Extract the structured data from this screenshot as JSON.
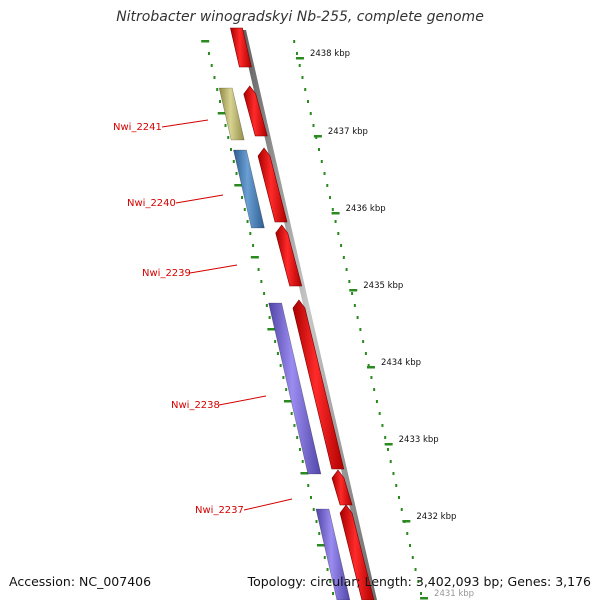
{
  "title": "Nitrobacter winogradskyi Nb-255, complete genome",
  "footer": {
    "accession": "Accession: NC_007406",
    "summary": "Topology: circular; Length: 3,402,093 bp; Genes: 3,176"
  },
  "colors": {
    "forward_gene": "#e8000b",
    "blue_gene": "#4a7fb5",
    "olive_gene": "#bdb76b",
    "purple_gene": "#7a6bd6",
    "backbone": "#8a8a8a",
    "ticks": "#2a8a1f",
    "gene_label": "#d40000"
  },
  "ruler": {
    "ticks": [
      "2438 kbp",
      "2437 kbp",
      "2436 kbp",
      "2435 kbp",
      "2434 kbp",
      "2433 kbp",
      "2432 kbp",
      "2431 kbp"
    ]
  },
  "genes": [
    {
      "name": "Nwi_2241",
      "color": "olive"
    },
    {
      "name": "Nwi_2240",
      "color": "blue"
    },
    {
      "name": "Nwi_2239",
      "color": "none"
    },
    {
      "name": "Nwi_2238",
      "color": "purple"
    },
    {
      "name": "Nwi_2237",
      "color": "purple"
    }
  ]
}
